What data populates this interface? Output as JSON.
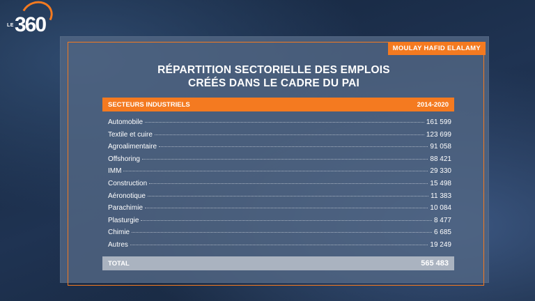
{
  "logo": {
    "prefix": "LE",
    "number": "360",
    "accent_color": "#f47a20"
  },
  "name_tag": "MOULAY HAFID ELALAMY",
  "title": {
    "line1": "RÉPARTITION SECTORIELLE DES EMPLOIS",
    "line2": "CRÉÉS DANS LE CADRE DU PAI"
  },
  "table": {
    "header_left": "SECTEURS INDUSTRIELS",
    "header_right": "2014-2020",
    "rows": [
      {
        "sector": "Automobile",
        "value": "161 599"
      },
      {
        "sector": "Textile et cuire",
        "value": "123 699"
      },
      {
        "sector": "Agroalimentaire",
        "value": "91 058"
      },
      {
        "sector": "Offshoring",
        "value": "88 421"
      },
      {
        "sector": "IMM",
        "value": "29 330"
      },
      {
        "sector": "Construction",
        "value": "15 498"
      },
      {
        "sector": "Aéronotique",
        "value": "11 383"
      },
      {
        "sector": "Parachimie",
        "value": "10 084"
      },
      {
        "sector": "Plasturgie",
        "value": "8 477"
      },
      {
        "sector": "Chimie",
        "value": "6 685"
      },
      {
        "sector": "Autres",
        "value": "19 249"
      }
    ],
    "total_label": "TOTAL",
    "total_value": "565 483"
  }
}
